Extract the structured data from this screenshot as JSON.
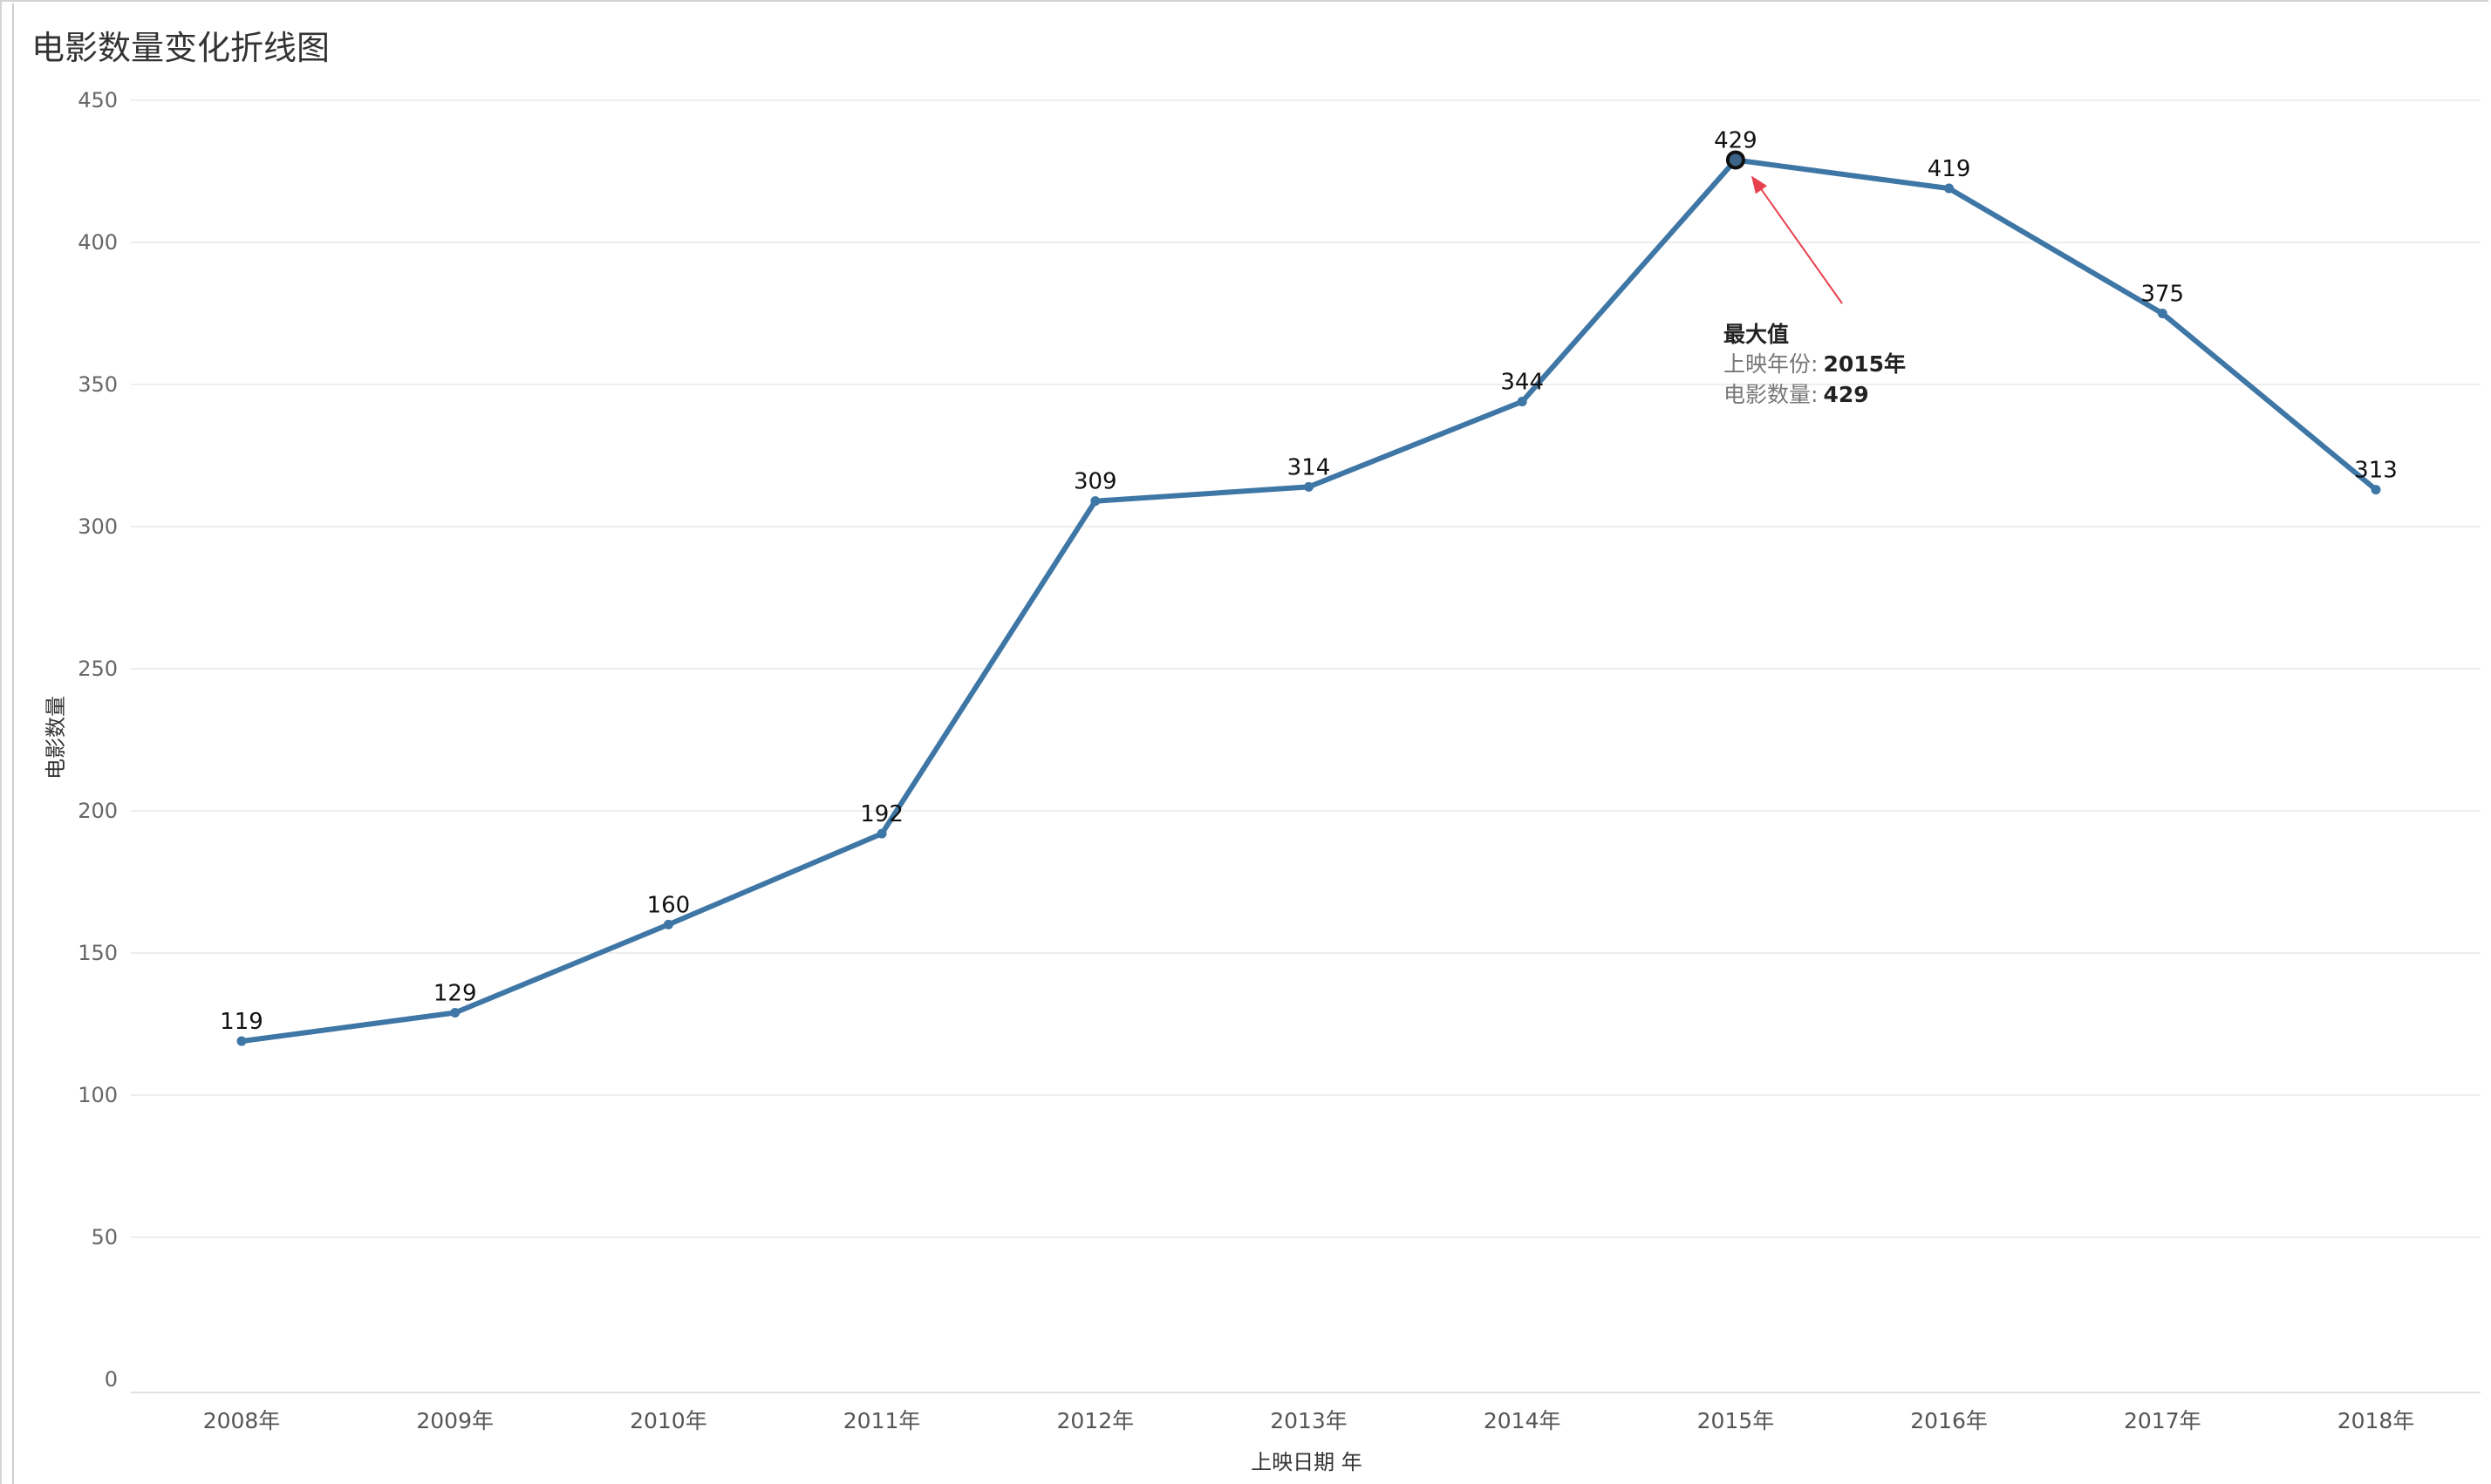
{
  "title": "电影数量变化折线图",
  "chart_data": {
    "type": "line",
    "title": "电影数量变化折线图",
    "xlabel": "上映日期 年",
    "ylabel": "电影数量",
    "categories": [
      "2008年",
      "2009年",
      "2010年",
      "2011年",
      "2012年",
      "2013年",
      "2014年",
      "2015年",
      "2016年",
      "2017年",
      "2018年"
    ],
    "values": [
      119,
      129,
      160,
      192,
      309,
      314,
      344,
      429,
      419,
      375,
      313
    ],
    "ylim": [
      0,
      450
    ],
    "yticks": [
      0,
      50,
      100,
      150,
      200,
      250,
      300,
      350,
      400,
      450
    ],
    "grid": true,
    "line_color": "#3e76a6",
    "annotation": {
      "title": "最大值",
      "rows": [
        {
          "key": "上映年份:",
          "value": "2015年"
        },
        {
          "key": "电影数量:",
          "value": "429"
        }
      ],
      "arrow_color": "#e8414e"
    }
  }
}
